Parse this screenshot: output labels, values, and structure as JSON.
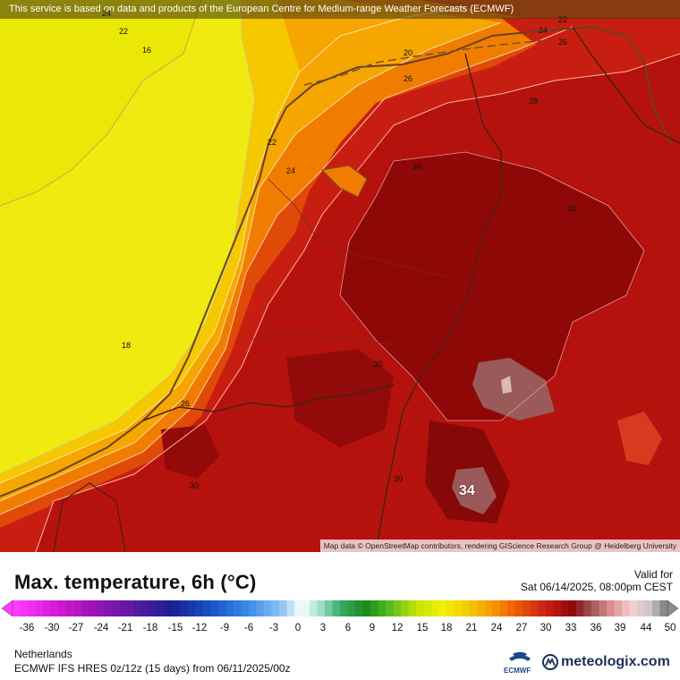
{
  "map": {
    "notice": "This service is based on data and products of the European Centre for Medium-range Weather Forecasts (ECMWF)",
    "attribution": "Map data © OpenStreetMap contributors, rendering GIScience Research Group @ Heidelberg University",
    "contour_labels": [
      "16",
      "22",
      "24",
      "20",
      "26",
      "22",
      "24",
      "26",
      "28",
      "30",
      "30",
      "24",
      "22",
      "18",
      "26",
      "30",
      "30",
      "30"
    ],
    "max_label": "34"
  },
  "legend": {
    "title": "Max. temperature, 6h (°C)",
    "valid_label": "Valid for",
    "valid_time": "Sat 06/14/2025, 08:00pm CEST",
    "ticks": [
      "-36",
      "-30",
      "-27",
      "-24",
      "-21",
      "-18",
      "-15",
      "-12",
      "-9",
      "-6",
      "-3",
      "0",
      "3",
      "6",
      "9",
      "12",
      "15",
      "18",
      "21",
      "24",
      "27",
      "30",
      "33",
      "36",
      "39",
      "44",
      "50"
    ],
    "region": "Netherlands",
    "model": "ECMWF IFS HRES 0z/12z (15 days) from 06/11/2025/00z",
    "ecmwf_logo_text": "ECMWF",
    "brand": "meteologix.com",
    "colors": {
      "cold_end": "#ff33ff",
      "freezing": "#ffffff",
      "mild_green": "#2aa82a",
      "yellow": "#f2f000",
      "orange": "#f39a00",
      "red": "#c42414",
      "dark_red": "#8a0a0a",
      "hot_end": "#a0a0a0"
    }
  }
}
